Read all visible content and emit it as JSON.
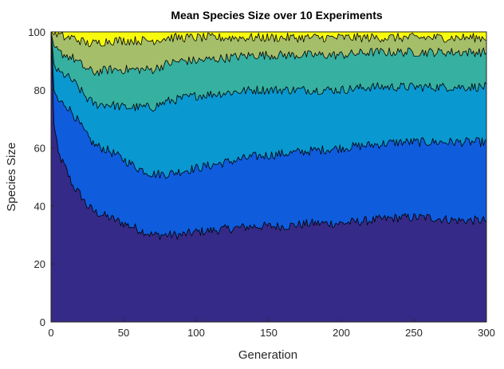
{
  "chart_data": {
    "type": "area",
    "stacked": true,
    "title": "Mean Species Size over 10 Experiments",
    "xlabel": "Generation",
    "ylabel": "Species Size",
    "xlim": [
      0,
      300
    ],
    "ylim": [
      0,
      100
    ],
    "xticks": [
      0,
      50,
      100,
      150,
      200,
      250,
      300
    ],
    "yticks": [
      0,
      20,
      40,
      60,
      80,
      100
    ],
    "grid": false,
    "legend": "none",
    "x": [
      0,
      2,
      5,
      10,
      15,
      20,
      25,
      30,
      40,
      50,
      60,
      70,
      80,
      90,
      100,
      120,
      140,
      160,
      180,
      200,
      220,
      240,
      260,
      280,
      300
    ],
    "series": [
      {
        "color": "#352a87",
        "values": [
          100,
          68,
          58,
          53,
          47,
          44,
          40,
          38,
          36,
          34,
          32,
          30,
          30,
          30,
          31,
          32,
          33,
          33,
          34,
          34,
          35,
          36,
          36,
          35,
          35
        ]
      },
      {
        "color": "#0f5cdd",
        "values": [
          0,
          12,
          18,
          22,
          25,
          24,
          24,
          23,
          23,
          22,
          21,
          21,
          21,
          22,
          22,
          23,
          24,
          25,
          25,
          26,
          26,
          26,
          26,
          27,
          27
        ]
      },
      {
        "color": "#0a98d0",
        "values": [
          0,
          9,
          10,
          10,
          11,
          12,
          13,
          14,
          16,
          18,
          21,
          23,
          25,
          25,
          25,
          24,
          23,
          22,
          21,
          20,
          20,
          19,
          19,
          19,
          19
        ]
      },
      {
        "color": "#36b0a0",
        "values": [
          0,
          6,
          7,
          7,
          8,
          9,
          10,
          11,
          12,
          13,
          13,
          13,
          13,
          13,
          12,
          12,
          12,
          12,
          12,
          12,
          12,
          12,
          12,
          12,
          12
        ]
      },
      {
        "color": "#a5be6a",
        "values": [
          0,
          4,
          6,
          6,
          7,
          8,
          9,
          10,
          10,
          10,
          10,
          10,
          9,
          8,
          8,
          7,
          6,
          6,
          6,
          6,
          5,
          5,
          5,
          5,
          5
        ]
      },
      {
        "color": "#f8fa0d",
        "values": [
          0,
          1,
          1,
          2,
          2,
          3,
          4,
          4,
          3,
          3,
          3,
          3,
          2,
          2,
          2,
          2,
          2,
          2,
          2,
          2,
          2,
          2,
          2,
          2,
          2
        ]
      }
    ]
  }
}
